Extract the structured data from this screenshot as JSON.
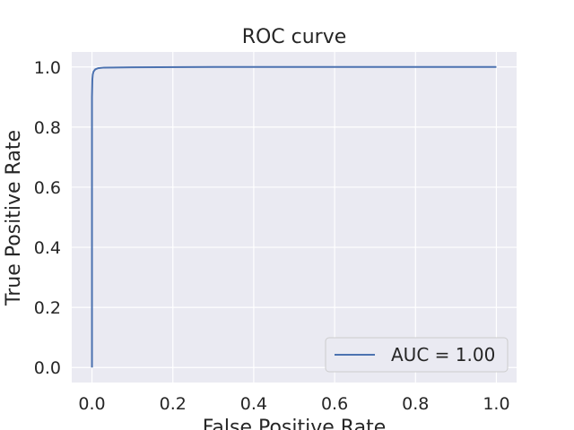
{
  "chart_data": {
    "type": "line",
    "title": "ROC curve",
    "xlabel": "False Positive Rate",
    "ylabel": "True Positive Rate",
    "xlim": [
      -0.05,
      1.05
    ],
    "ylim": [
      -0.05,
      1.05
    ],
    "xticks": [
      0.0,
      0.2,
      0.4,
      0.6,
      0.8,
      1.0
    ],
    "xtick_labels": [
      "0.0",
      "0.2",
      "0.4",
      "0.6",
      "0.8",
      "1.0"
    ],
    "yticks": [
      0.0,
      0.2,
      0.4,
      0.6,
      0.8,
      1.0
    ],
    "ytick_labels": [
      "0.0",
      "0.2",
      "0.4",
      "0.6",
      "0.8",
      "1.0"
    ],
    "grid": true,
    "legend_position": "lower-right",
    "series": [
      {
        "name": "AUC = 1.00",
        "color": "#4c72b0",
        "x": [
          0.0,
          0.0,
          0.0,
          0.001,
          0.002,
          0.004,
          0.008,
          0.015,
          0.03,
          0.1,
          0.3,
          0.6,
          1.0
        ],
        "y": [
          0.0,
          0.5,
          0.9,
          0.96,
          0.975,
          0.985,
          0.992,
          0.996,
          0.998,
          0.999,
          1.0,
          1.0,
          1.0
        ]
      }
    ],
    "background_color": "#eaeaf2",
    "grid_color": "#ffffff"
  }
}
